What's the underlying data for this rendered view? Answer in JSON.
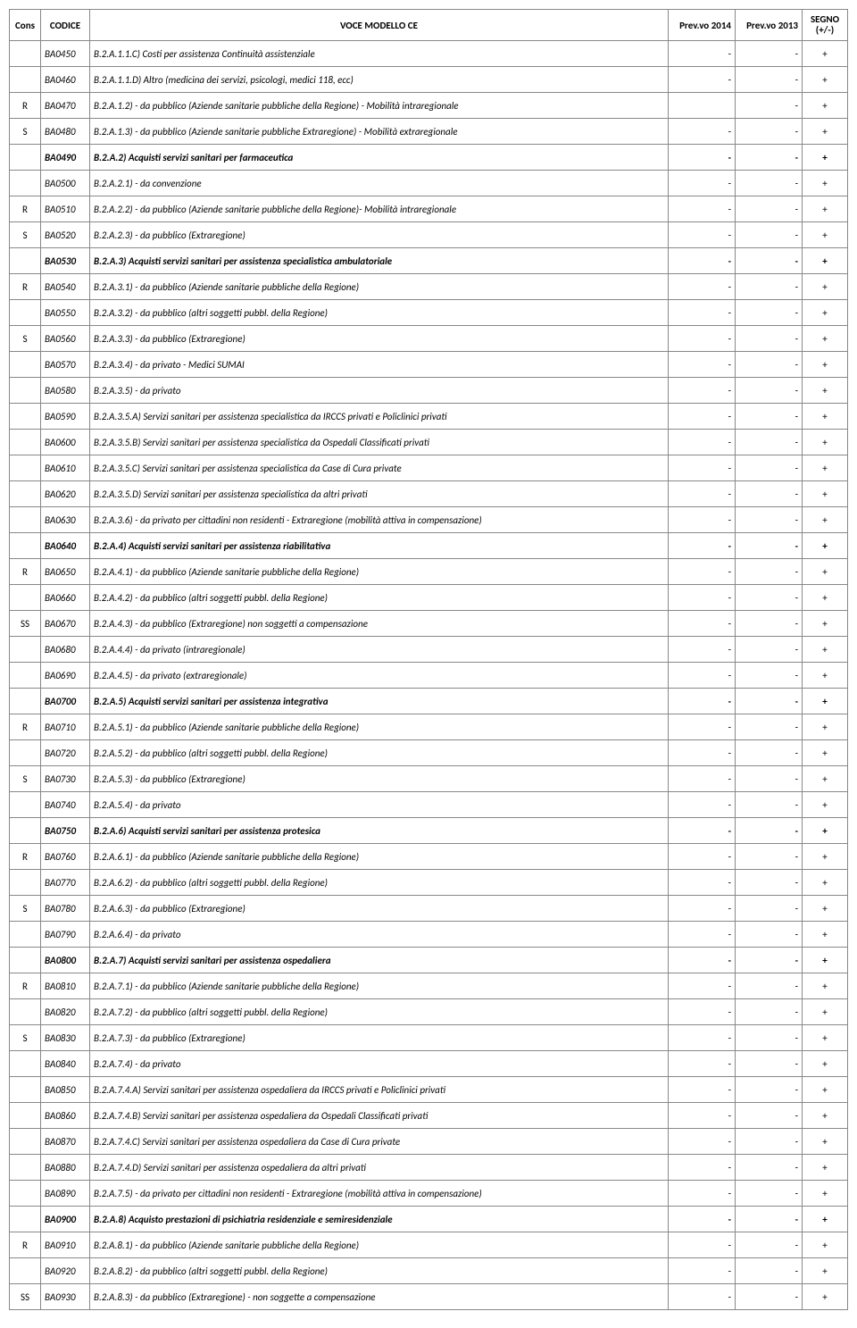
{
  "columns": {
    "cons": "Cons",
    "codice": "CODICE",
    "voce": "VOCE MODELLO CE",
    "prev2014": "Prev.vo 2014",
    "prev2013": "Prev.vo 2013",
    "segno": "SEGNO (+/-)"
  },
  "rows": [
    {
      "cons": "",
      "codice": "BA0450",
      "voce": "B.2.A.1.1.C) Costi per assistenza Continuità assistenziale",
      "p14": "-",
      "p13": "-",
      "segno": "+",
      "bold": false
    },
    {
      "cons": "",
      "codice": "BA0460",
      "voce": "B.2.A.1.1.D) Altro (medicina dei servizi, psicologi, medici 118, ecc)",
      "p14": "-",
      "p13": "-",
      "segno": "+",
      "bold": false
    },
    {
      "cons": "R",
      "codice": "BA0470",
      "voce": "B.2.A.1.2) - da pubblico (Aziende sanitarie pubbliche della Regione) - Mobilità intraregionale",
      "p14": "",
      "p13": "-",
      "segno": "+",
      "bold": false
    },
    {
      "cons": "S",
      "codice": "BA0480",
      "voce": "B.2.A.1.3) - da pubblico (Aziende sanitarie pubbliche Extraregione) - Mobilità extraregionale",
      "p14": "-",
      "p13": "-",
      "segno": "+",
      "bold": false
    },
    {
      "cons": "",
      "codice": "BA0490",
      "voce": "B.2.A.2)  Acquisti servizi sanitari per farmaceutica",
      "p14": "-",
      "p13": "-",
      "segno": "+",
      "bold": true
    },
    {
      "cons": "",
      "codice": "BA0500",
      "voce": "B.2.A.2.1) - da convenzione",
      "p14": "-",
      "p13": "-",
      "segno": "+",
      "bold": false
    },
    {
      "cons": "R",
      "codice": "BA0510",
      "voce": "B.2.A.2.2) - da pubblico (Aziende sanitarie pubbliche della Regione)- Mobilità intraregionale",
      "p14": "-",
      "p13": "-",
      "segno": "+",
      "bold": false
    },
    {
      "cons": "S",
      "codice": "BA0520",
      "voce": "B.2.A.2.3) - da pubblico (Extraregione)",
      "p14": "-",
      "p13": "-",
      "segno": "+",
      "bold": false
    },
    {
      "cons": "",
      "codice": "BA0530",
      "voce": "B.2.A.3)  Acquisti servizi sanitari per assistenza specialistica ambulatoriale",
      "p14": "-",
      "p13": "-",
      "segno": "+",
      "bold": true
    },
    {
      "cons": "R",
      "codice": "BA0540",
      "voce": "B.2.A.3.1) - da pubblico (Aziende sanitarie pubbliche della Regione)",
      "p14": "-",
      "p13": "-",
      "segno": "+",
      "bold": false
    },
    {
      "cons": "",
      "codice": "BA0550",
      "voce": "B.2.A.3.2) - da pubblico (altri soggetti pubbl. della Regione)",
      "p14": "-",
      "p13": "-",
      "segno": "+",
      "bold": false
    },
    {
      "cons": "S",
      "codice": "BA0560",
      "voce": "B.2.A.3.3) - da pubblico (Extraregione)",
      "p14": "-",
      "p13": "-",
      "segno": "+",
      "bold": false
    },
    {
      "cons": "",
      "codice": "BA0570",
      "voce": "B.2.A.3.4) - da privato - Medici SUMAI",
      "p14": "-",
      "p13": "-",
      "segno": "+",
      "bold": false
    },
    {
      "cons": "",
      "codice": "BA0580",
      "voce": "B.2.A.3.5) - da privato",
      "p14": "-",
      "p13": "-",
      "segno": "+",
      "bold": false
    },
    {
      "cons": "",
      "codice": "BA0590",
      "voce": "B.2.A.3.5.A) Servizi sanitari per assistenza specialistica da IRCCS privati e Policlinici privati",
      "p14": "-",
      "p13": "-",
      "segno": "+",
      "bold": false
    },
    {
      "cons": "",
      "codice": "BA0600",
      "voce": "B.2.A.3.5.B) Servizi sanitari per assistenza specialistica da Ospedali Classificati privati",
      "p14": "-",
      "p13": "-",
      "segno": "+",
      "bold": false
    },
    {
      "cons": "",
      "codice": "BA0610",
      "voce": "B.2.A.3.5.C) Servizi sanitari per assistenza specialistica da Case di Cura private",
      "p14": "-",
      "p13": "-",
      "segno": "+",
      "bold": false
    },
    {
      "cons": "",
      "codice": "BA0620",
      "voce": "B.2.A.3.5.D) Servizi sanitari per assistenza specialistica da altri privati",
      "p14": "-",
      "p13": "-",
      "segno": "+",
      "bold": false
    },
    {
      "cons": "",
      "codice": "BA0630",
      "voce": "B.2.A.3.6) - da privato per cittadini non residenti - Extraregione (mobilità attiva in compensazione)",
      "p14": "-",
      "p13": "-",
      "segno": "+",
      "bold": false
    },
    {
      "cons": "",
      "codice": "BA0640",
      "voce": "B.2.A.4)  Acquisti servizi sanitari per assistenza riabilitativa",
      "p14": "-",
      "p13": "-",
      "segno": "+",
      "bold": true
    },
    {
      "cons": "R",
      "codice": "BA0650",
      "voce": "B.2.A.4.1) - da pubblico (Aziende sanitarie pubbliche della Regione)",
      "p14": "-",
      "p13": "-",
      "segno": "+",
      "bold": false
    },
    {
      "cons": "",
      "codice": "BA0660",
      "voce": "B.2.A.4.2) - da pubblico (altri soggetti pubbl. della Regione)",
      "p14": "-",
      "p13": "-",
      "segno": "+",
      "bold": false
    },
    {
      "cons": "SS",
      "codice": "BA0670",
      "voce": "B.2.A.4.3) - da pubblico (Extraregione) non soggetti a compensazione",
      "p14": "-",
      "p13": "-",
      "segno": "+",
      "bold": false
    },
    {
      "cons": "",
      "codice": "BA0680",
      "voce": "B.2.A.4.4) - da privato (intraregionale)",
      "p14": "-",
      "p13": "-",
      "segno": "+",
      "bold": false
    },
    {
      "cons": "",
      "codice": "BA0690",
      "voce": "B.2.A.4.5) - da privato (extraregionale)",
      "p14": "-",
      "p13": "-",
      "segno": "+",
      "bold": false
    },
    {
      "cons": "",
      "codice": "BA0700",
      "voce": "B.2.A.5)  Acquisti servizi sanitari per assistenza integrativa",
      "p14": "-",
      "p13": "-",
      "segno": "+",
      "bold": true
    },
    {
      "cons": "R",
      "codice": "BA0710",
      "voce": "B.2.A.5.1) - da pubblico (Aziende sanitarie pubbliche della Regione)",
      "p14": "-",
      "p13": "-",
      "segno": "+",
      "bold": false
    },
    {
      "cons": "",
      "codice": "BA0720",
      "voce": "B.2.A.5.2) - da pubblico (altri soggetti pubbl. della Regione)",
      "p14": "-",
      "p13": "-",
      "segno": "+",
      "bold": false
    },
    {
      "cons": "S",
      "codice": "BA0730",
      "voce": "B.2.A.5.3) - da pubblico (Extraregione)",
      "p14": "-",
      "p13": "-",
      "segno": "+",
      "bold": false
    },
    {
      "cons": "",
      "codice": "BA0740",
      "voce": "B.2.A.5.4) - da privato",
      "p14": "-",
      "p13": "-",
      "segno": "+",
      "bold": false
    },
    {
      "cons": "",
      "codice": "BA0750",
      "voce": "B.2.A.6)  Acquisti servizi sanitari per assistenza protesica",
      "p14": "-",
      "p13": "-",
      "segno": "+",
      "bold": true
    },
    {
      "cons": "R",
      "codice": "BA0760",
      "voce": "B.2.A.6.1) - da pubblico (Aziende sanitarie pubbliche della Regione)",
      "p14": "-",
      "p13": "-",
      "segno": "+",
      "bold": false
    },
    {
      "cons": "",
      "codice": "BA0770",
      "voce": "B.2.A.6.2) - da pubblico (altri soggetti pubbl. della Regione)",
      "p14": "-",
      "p13": "-",
      "segno": "+",
      "bold": false
    },
    {
      "cons": "S",
      "codice": "BA0780",
      "voce": "B.2.A.6.3) - da pubblico (Extraregione)",
      "p14": "-",
      "p13": "-",
      "segno": "+",
      "bold": false
    },
    {
      "cons": "",
      "codice": "BA0790",
      "voce": "B.2.A.6.4) - da privato",
      "p14": "-",
      "p13": "-",
      "segno": "+",
      "bold": false
    },
    {
      "cons": "",
      "codice": "BA0800",
      "voce": "B.2.A.7)  Acquisti servizi sanitari per assistenza ospedaliera",
      "p14": "-",
      "p13": "-",
      "segno": "+",
      "bold": true
    },
    {
      "cons": "R",
      "codice": "BA0810",
      "voce": "B.2.A.7.1) - da pubblico (Aziende sanitarie pubbliche della Regione)",
      "p14": "-",
      "p13": "-",
      "segno": "+",
      "bold": false
    },
    {
      "cons": "",
      "codice": "BA0820",
      "voce": "B.2.A.7.2) - da pubblico (altri soggetti pubbl. della Regione)",
      "p14": "-",
      "p13": "-",
      "segno": "+",
      "bold": false
    },
    {
      "cons": "S",
      "codice": "BA0830",
      "voce": "B.2.A.7.3) - da pubblico (Extraregione)",
      "p14": "-",
      "p13": "-",
      "segno": "+",
      "bold": false
    },
    {
      "cons": "",
      "codice": "BA0840",
      "voce": "B.2.A.7.4) - da privato",
      "p14": "-",
      "p13": "-",
      "segno": "+",
      "bold": false
    },
    {
      "cons": "",
      "codice": "BA0850",
      "voce": "B.2.A.7.4.A) Servizi sanitari per assistenza ospedaliera da IRCCS privati e Policlinici privati",
      "p14": "-",
      "p13": "-",
      "segno": "+",
      "bold": false
    },
    {
      "cons": "",
      "codice": "BA0860",
      "voce": "B.2.A.7.4.B) Servizi sanitari per assistenza ospedaliera da Ospedali Classificati privati",
      "p14": "-",
      "p13": "-",
      "segno": "+",
      "bold": false
    },
    {
      "cons": "",
      "codice": "BA0870",
      "voce": "B.2.A.7.4.C) Servizi sanitari per assistenza ospedaliera da Case di Cura private",
      "p14": "-",
      "p13": "-",
      "segno": "+",
      "bold": false
    },
    {
      "cons": "",
      "codice": "BA0880",
      "voce": "B.2.A.7.4.D) Servizi sanitari per assistenza ospedaliera da altri privati",
      "p14": "-",
      "p13": "-",
      "segno": "+",
      "bold": false
    },
    {
      "cons": "",
      "codice": "BA0890",
      "voce": "B.2.A.7.5) - da privato per cittadini non residenti - Extraregione (mobilità attiva in compensazione)",
      "p14": "-",
      "p13": "-",
      "segno": "+",
      "bold": false
    },
    {
      "cons": "",
      "codice": "BA0900",
      "voce": "B.2.A.8)  Acquisto prestazioni di psichiatria residenziale e semiresidenziale",
      "p14": "-",
      "p13": "-",
      "segno": "+",
      "bold": true
    },
    {
      "cons": "R",
      "codice": "BA0910",
      "voce": "B.2.A.8.1) - da pubblico (Aziende sanitarie pubbliche della Regione)",
      "p14": "-",
      "p13": "-",
      "segno": "+",
      "bold": false
    },
    {
      "cons": "",
      "codice": "BA0920",
      "voce": "B.2.A.8.2) - da pubblico (altri soggetti pubbl. della Regione)",
      "p14": "-",
      "p13": "-",
      "segno": "+",
      "bold": false
    },
    {
      "cons": "SS",
      "codice": "BA0930",
      "voce": "B.2.A.8.3) - da pubblico (Extraregione) - non soggette a compensazione",
      "p14": "-",
      "p13": "-",
      "segno": "+",
      "bold": false
    }
  ]
}
